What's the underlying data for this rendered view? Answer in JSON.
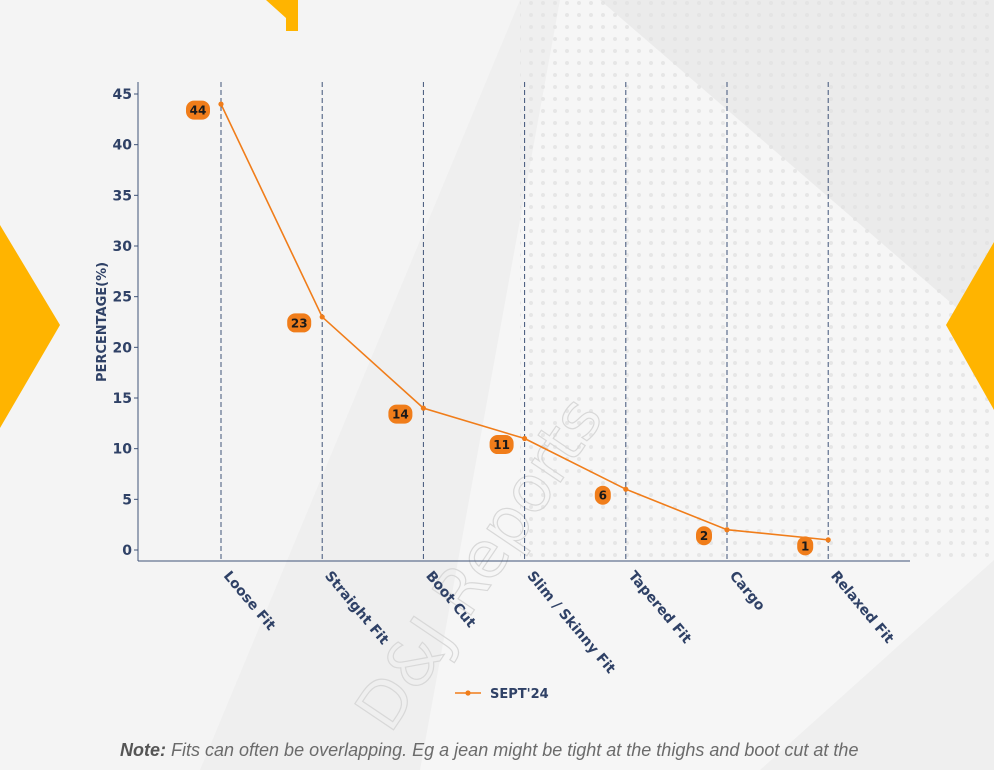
{
  "chart_data": {
    "type": "line",
    "title": "",
    "xlabel": "",
    "ylabel": "PERCENTAGE(%)",
    "ylim": [
      0,
      45
    ],
    "yticks": [
      0,
      5,
      10,
      15,
      20,
      25,
      30,
      35,
      40,
      45
    ],
    "categories": [
      "Loose Fit",
      "Straight Fit",
      "Boot Cut",
      "Slim / Skinny Fit",
      "Tapered Fit",
      "Cargo",
      "Relaxed Fit"
    ],
    "series": [
      {
        "name": "SEPT'24",
        "values": [
          44,
          23,
          14,
          11,
          6,
          2,
          1
        ],
        "color": "#f07d1a"
      }
    ],
    "legend_position": "bottom-center",
    "grid": "vertical-dashed"
  },
  "watermark": "D&J Reports",
  "note": {
    "label": "Note:",
    "text": " Fits can often be overlapping. Eg a jean might be tight at the thighs and boot cut at the"
  },
  "colors": {
    "line": "#f07d1a",
    "label_bg": "#f07d1a",
    "axis_text": "#2f4166",
    "grid": "#3f5378",
    "accent": "#ffb400"
  }
}
